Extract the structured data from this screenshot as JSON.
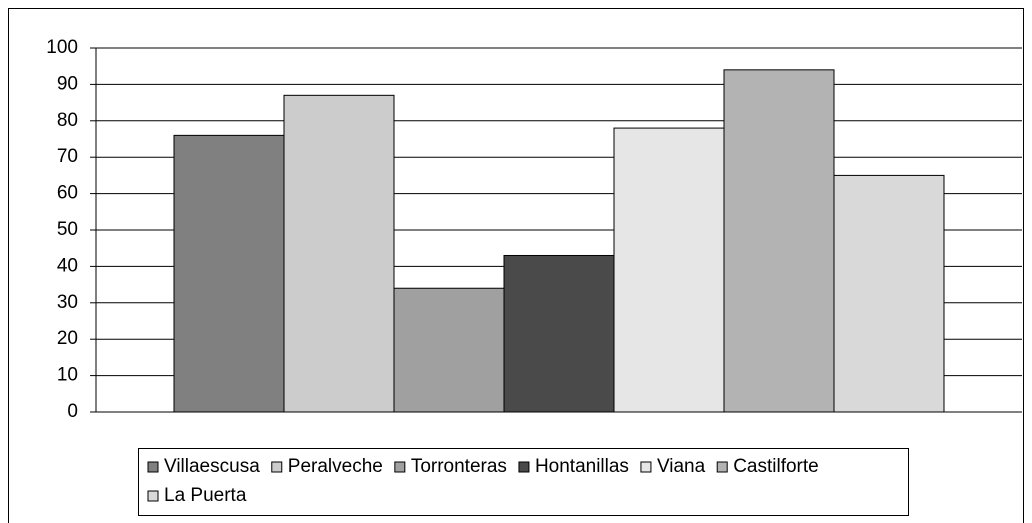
{
  "chart_data": {
    "type": "bar",
    "categories": [
      null
    ],
    "series": [
      {
        "name": "Villaescusa",
        "color": "#808080",
        "values": [
          76
        ]
      },
      {
        "name": "Peralveche",
        "color": "#cccccc",
        "values": [
          87
        ]
      },
      {
        "name": "Torronteras",
        "color": "#a0a0a0",
        "values": [
          34
        ]
      },
      {
        "name": "Hontanillas",
        "color": "#4a4a4a",
        "values": [
          43
        ]
      },
      {
        "name": "Viana",
        "color": "#e6e6e6",
        "values": [
          78
        ]
      },
      {
        "name": "Castilforte",
        "color": "#b3b3b3",
        "values": [
          94
        ]
      },
      {
        "name": "La Puerta",
        "color": "#d9d9d9",
        "values": [
          65
        ]
      }
    ],
    "ylim": [
      0,
      100
    ],
    "yticks": [
      0,
      10,
      20,
      30,
      40,
      50,
      60,
      70,
      80,
      90,
      100
    ],
    "grid": true,
    "legend": "bottom"
  }
}
